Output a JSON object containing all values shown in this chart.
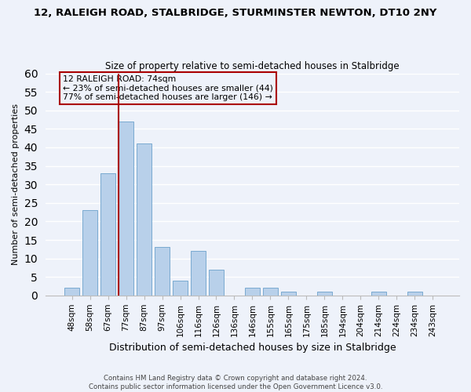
{
  "title": "12, RALEIGH ROAD, STALBRIDGE, STURMINSTER NEWTON, DT10 2NY",
  "subtitle": "Size of property relative to semi-detached houses in Stalbridge",
  "xlabel": "Distribution of semi-detached houses by size in Stalbridge",
  "ylabel": "Number of semi-detached properties",
  "bar_labels": [
    "48sqm",
    "58sqm",
    "67sqm",
    "77sqm",
    "87sqm",
    "97sqm",
    "106sqm",
    "116sqm",
    "126sqm",
    "136sqm",
    "146sqm",
    "155sqm",
    "165sqm",
    "175sqm",
    "185sqm",
    "194sqm",
    "204sqm",
    "214sqm",
    "224sqm",
    "234sqm",
    "243sqm"
  ],
  "bar_values": [
    2,
    23,
    33,
    47,
    41,
    13,
    4,
    12,
    7,
    0,
    2,
    2,
    1,
    0,
    1,
    0,
    0,
    1,
    0,
    1,
    0
  ],
  "bar_color": "#b8d0ea",
  "bar_edge_color": "#7aaad0",
  "property_line_index": 3,
  "property_label": "12 RALEIGH ROAD: 74sqm",
  "pct_smaller": 23,
  "count_smaller": 44,
  "pct_larger": 77,
  "count_larger": 146,
  "line_color": "#aa0000",
  "annotation_box_edge": "#aa0000",
  "ylim": [
    0,
    60
  ],
  "yticks": [
    0,
    5,
    10,
    15,
    20,
    25,
    30,
    35,
    40,
    45,
    50,
    55,
    60
  ],
  "footer1": "Contains HM Land Registry data © Crown copyright and database right 2024.",
  "footer2": "Contains public sector information licensed under the Open Government Licence v3.0.",
  "background_color": "#eef2fa",
  "grid_color": "#ffffff",
  "figsize": [
    6.0,
    5.0
  ],
  "dpi": 100
}
